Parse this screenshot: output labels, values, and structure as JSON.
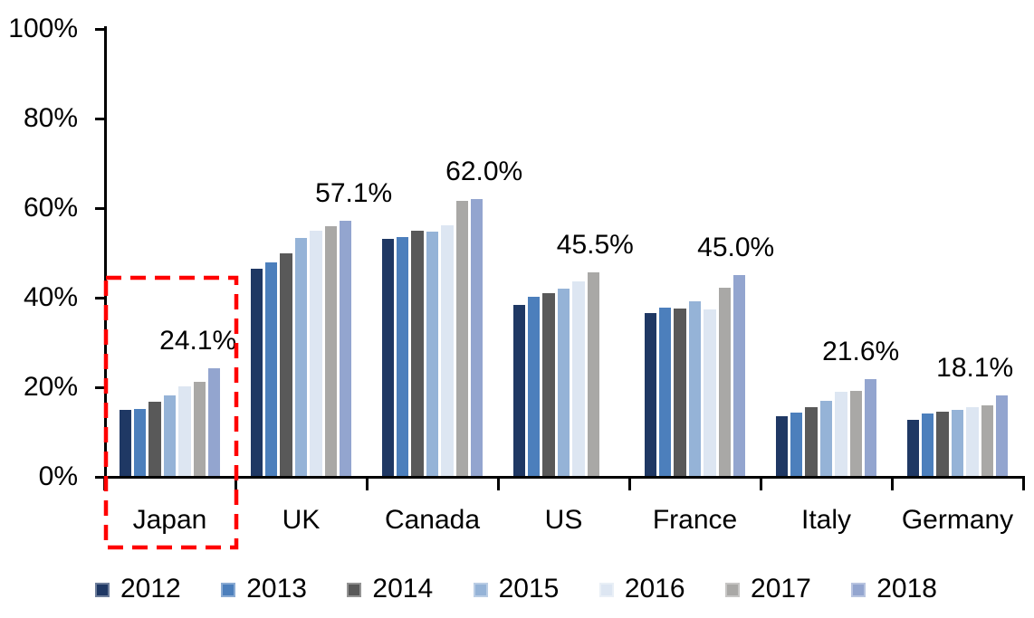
{
  "chart_data": {
    "type": "bar",
    "title": "",
    "unit": "%",
    "categories": [
      "Japan",
      "UK",
      "Canada",
      "US",
      "France",
      "Italy",
      "Germany"
    ],
    "series": [
      {
        "name": "2012",
        "color": "#1f3864",
        "values": [
          14.8,
          46.4,
          53.0,
          38.2,
          36.5,
          13.3,
          12.5
        ]
      },
      {
        "name": "2013",
        "color": "#4c7fbc",
        "values": [
          14.9,
          47.7,
          53.4,
          40.0,
          37.6,
          14.1,
          13.9
        ]
      },
      {
        "name": "2014",
        "color": "#595959",
        "values": [
          16.6,
          49.9,
          54.9,
          40.9,
          37.5,
          15.4,
          14.4
        ]
      },
      {
        "name": "2015",
        "color": "#95b3d7",
        "values": [
          18.0,
          53.3,
          54.6,
          42.0,
          39.1,
          16.8,
          14.7
        ]
      },
      {
        "name": "2016",
        "color": "#dde6f2",
        "values": [
          20.0,
          54.8,
          56.0,
          43.5,
          37.2,
          18.9,
          15.3
        ]
      },
      {
        "name": "2017",
        "color": "#a9a8a6",
        "values": [
          21.0,
          55.8,
          61.5,
          45.5,
          42.2,
          19.1,
          15.8
        ]
      },
      {
        "name": "2018",
        "color": "#93a5cf",
        "values": [
          24.1,
          57.1,
          62.0,
          null,
          45.0,
          21.6,
          18.1
        ]
      }
    ],
    "data_labels": [
      {
        "category": "Japan",
        "text": "24.1%",
        "dx": -18
      },
      {
        "category": "UK",
        "text": "57.1%",
        "dx": 9
      },
      {
        "category": "Canada",
        "text": "62.0%",
        "dx": 8
      },
      {
        "category": "US",
        "text": "45.5%",
        "dx": 2
      },
      {
        "category": "France",
        "text": "45.0%",
        "dx": -4
      },
      {
        "category": "Italy",
        "text": "21.6%",
        "dx": -11
      },
      {
        "category": "Germany",
        "text": "18.1%",
        "dx": -30
      }
    ],
    "y_axis": {
      "ticks": [
        "0%",
        "20%",
        "40%",
        "60%",
        "80%",
        "100%"
      ],
      "min": 0,
      "max": 100,
      "grid": false
    },
    "legend": {
      "position": "bottom",
      "entries": [
        "2012",
        "2013",
        "2014",
        "2015",
        "2016",
        "2017",
        "2018"
      ]
    },
    "annotations": {
      "highlight_box": {
        "target_category": "Japan",
        "color": "#ff0000",
        "style": "dashed"
      }
    }
  }
}
